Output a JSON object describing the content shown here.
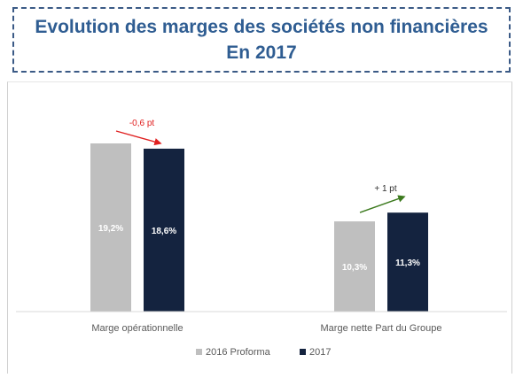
{
  "header": {
    "title_line1": "Evolution des marges des sociétés non financières",
    "title_line2": "En 2017"
  },
  "chart_data": {
    "type": "bar",
    "categories": [
      "Marge opérationnelle",
      "Marge nette Part du Groupe"
    ],
    "series": [
      {
        "name": "2016 Proforma",
        "values": [
          19.2,
          10.3
        ],
        "labels": [
          "19,2%",
          "10,3%"
        ],
        "color": "#bfbfbf"
      },
      {
        "name": "2017",
        "values": [
          18.6,
          11.3
        ],
        "labels": [
          "18,6%",
          "11,3%"
        ],
        "color": "#14233f"
      }
    ],
    "annotations": [
      {
        "category": "Marge opérationnelle",
        "text": "-0,6 pt",
        "color": "#e02020",
        "direction": "down"
      },
      {
        "category": "Marge nette Part du Groupe",
        "text": "+ 1 pt",
        "color": "#3c7a1e",
        "direction": "up"
      }
    ],
    "ylim": [
      0,
      20
    ],
    "legend_position": "bottom",
    "grid": false
  }
}
